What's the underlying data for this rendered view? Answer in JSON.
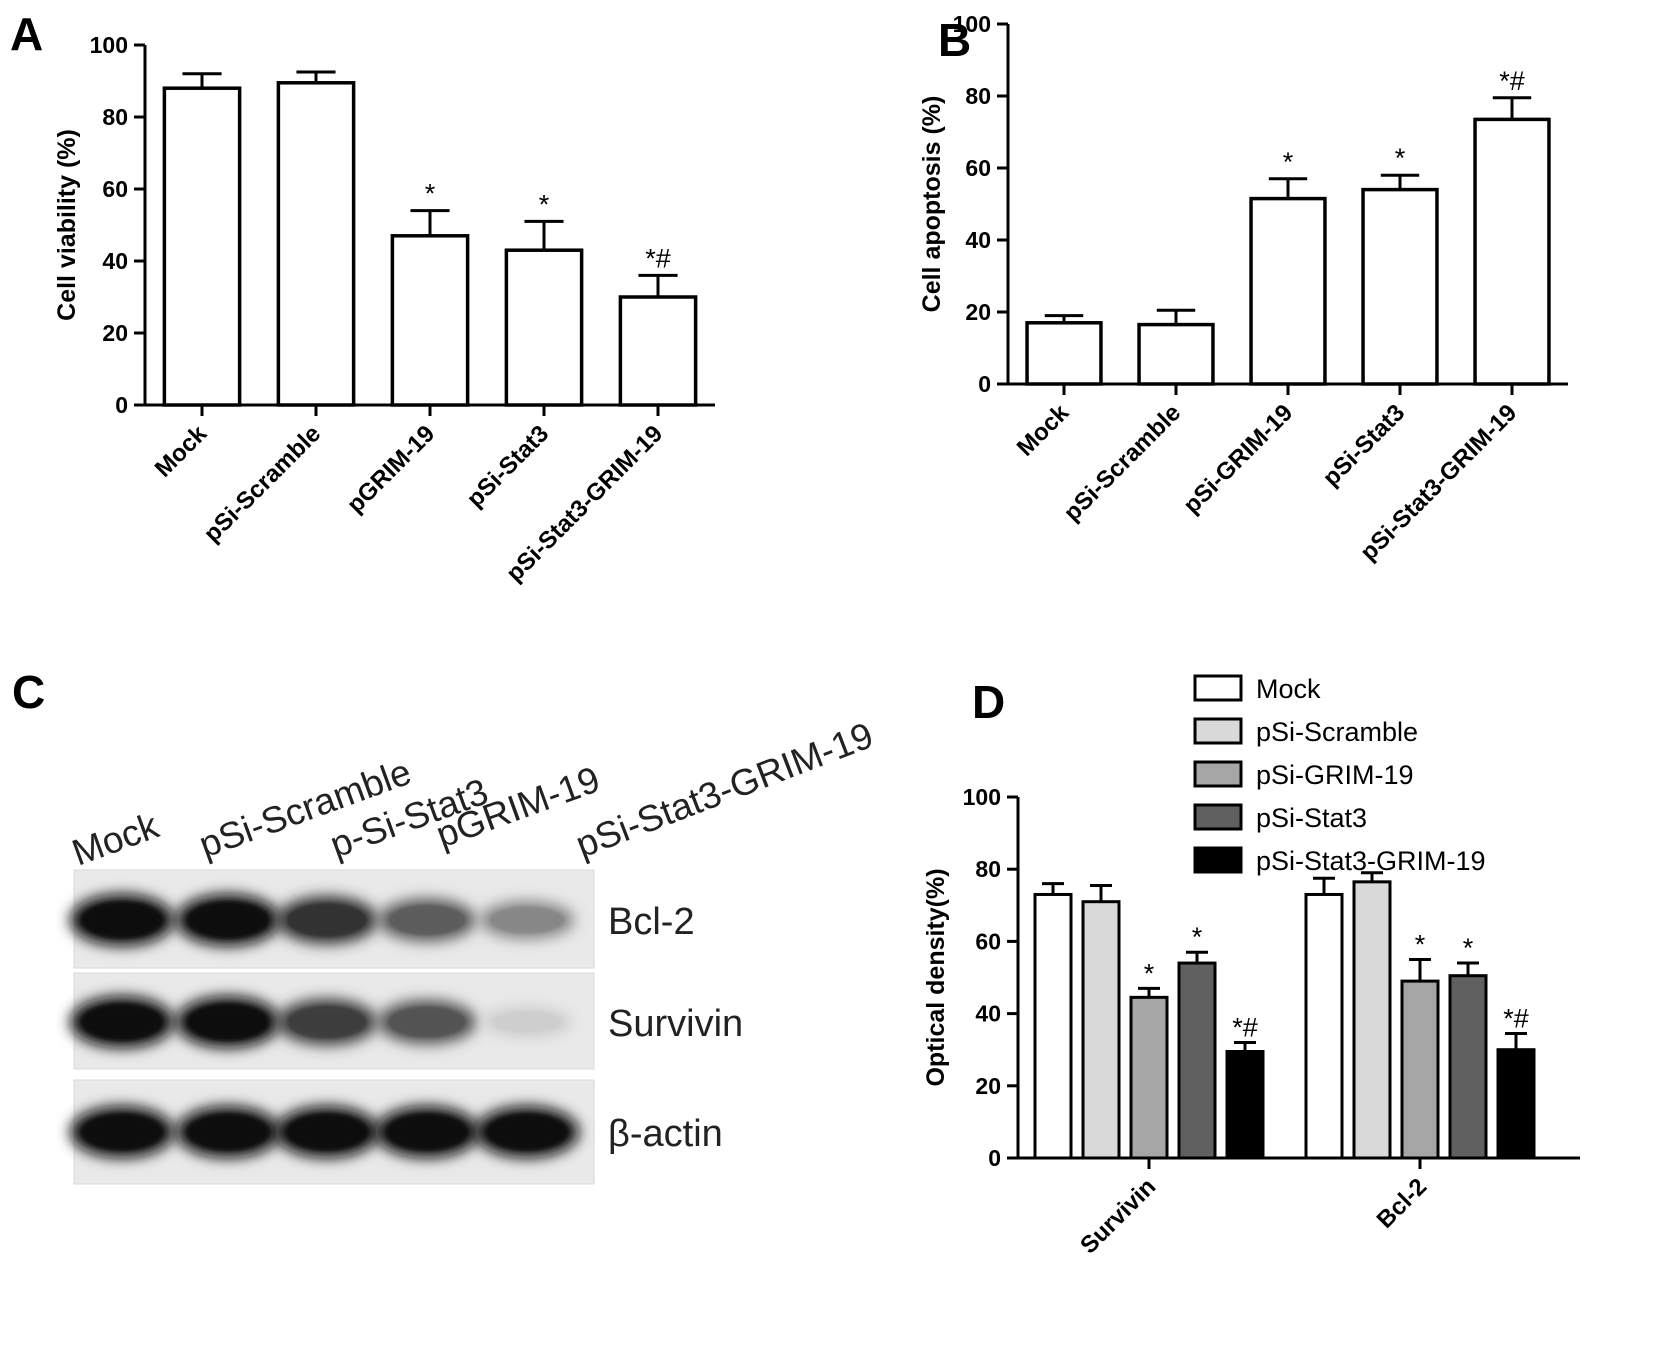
{
  "panels": {
    "A": "A",
    "B": "B",
    "C": "C",
    "D": "D"
  },
  "chart_data": [
    {
      "panel": "A",
      "type": "bar",
      "title": "",
      "ylabel": "Cell viability (%)",
      "xlabel": "",
      "ylim": [
        0,
        100
      ],
      "yticks": [
        0,
        20,
        40,
        60,
        80,
        100
      ],
      "categories": [
        "Mock",
        "pSi-Scramble",
        "pGRIM-19",
        "pSi-Stat3",
        "pSi-Stat3-GRIM-19"
      ],
      "values": [
        88,
        89.5,
        47,
        43,
        30
      ],
      "errors": [
        4,
        3,
        7,
        8,
        6
      ],
      "significance": [
        "",
        "",
        "*",
        "*",
        "*#"
      ],
      "colors": [
        "#ffffff",
        "#ffffff",
        "#ffffff",
        "#ffffff",
        "#ffffff"
      ],
      "grid": false
    },
    {
      "panel": "B",
      "type": "bar",
      "title": "",
      "ylabel": "Cell apoptosis (%)",
      "xlabel": "",
      "ylim": [
        0,
        100
      ],
      "yticks": [
        0,
        20,
        40,
        60,
        80,
        100
      ],
      "categories": [
        "Mock",
        "pSi-Scramble",
        "pSi-GRIM-19",
        "pSi-Stat3",
        "pSi-Stat3-GRIM-19"
      ],
      "values": [
        17,
        16.5,
        51.5,
        54,
        73.5
      ],
      "errors": [
        2,
        4,
        5.5,
        4,
        6
      ],
      "significance": [
        "",
        "",
        "*",
        "*",
        "*#"
      ],
      "colors": [
        "#ffffff",
        "#ffffff",
        "#ffffff",
        "#ffffff",
        "#ffffff"
      ],
      "grid": false
    },
    {
      "panel": "D",
      "type": "bar",
      "title": "",
      "ylabel": "Optical density(%)",
      "xlabel": "",
      "ylim": [
        0,
        100
      ],
      "yticks": [
        0,
        20,
        40,
        60,
        80,
        100
      ],
      "categories": [
        "Survivin",
        "Bcl-2"
      ],
      "legend_position": "top-right",
      "series": [
        {
          "name": "Mock",
          "color": "#ffffff",
          "values": [
            73,
            73
          ],
          "errors": [
            3,
            4.5
          ],
          "significance": [
            "",
            ""
          ]
        },
        {
          "name": "pSi-Scramble",
          "color": "#d9d9d9",
          "values": [
            71,
            76.5
          ],
          "errors": [
            4.5,
            2.5
          ],
          "significance": [
            "",
            ""
          ]
        },
        {
          "name": "pSi-GRIM-19",
          "color": "#a6a6a6",
          "values": [
            44.5,
            49
          ],
          "errors": [
            2.5,
            6
          ],
          "significance": [
            "*",
            "*"
          ]
        },
        {
          "name": "pSi-Stat3",
          "color": "#606060",
          "values": [
            54,
            50.5
          ],
          "errors": [
            3,
            3.5
          ],
          "significance": [
            "*",
            "*"
          ]
        },
        {
          "name": "pSi-Stat3-GRIM-19",
          "color": "#000000",
          "values": [
            29.5,
            30
          ],
          "errors": [
            2.5,
            4.5
          ],
          "significance": [
            "*#",
            "*#"
          ]
        }
      ],
      "grid": false
    }
  ],
  "blot": {
    "lanes": [
      "Mock",
      "pSi-Scramble",
      "p-Si-Stat3",
      "pGRIM-19",
      "pSi-Stat3-GRIM-19"
    ],
    "proteins": [
      {
        "name": "Bcl-2",
        "intensity": [
          1.0,
          1.0,
          0.85,
          0.65,
          0.45
        ]
      },
      {
        "name": "Survivin",
        "intensity": [
          1.0,
          1.0,
          0.8,
          0.7,
          0.12
        ]
      },
      {
        "name": "β-actin",
        "intensity": [
          1.0,
          1.0,
          1.0,
          1.0,
          1.0
        ]
      }
    ]
  }
}
